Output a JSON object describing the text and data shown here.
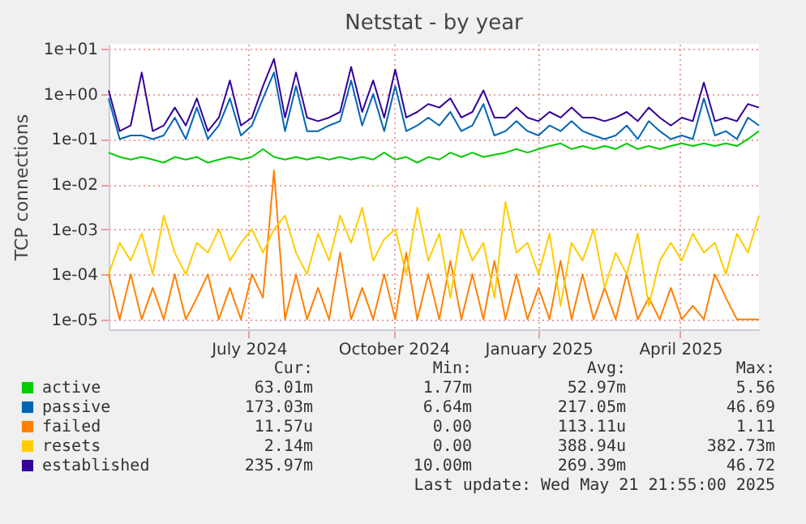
{
  "chart_data": {
    "type": "line",
    "title": "Netstat - by year",
    "ylabel": "TCP connections",
    "log": true,
    "grid": true,
    "legend": "bottom",
    "marker": "none",
    "line_style": "solid",
    "xlim": [
      "2024-04-03",
      "2025-05-21"
    ],
    "xticks": [
      {
        "value": "2024-07-01",
        "label": "July 2024"
      },
      {
        "value": "2024-10-01",
        "label": "October 2024"
      },
      {
        "value": "2025-01-01",
        "label": "January 2025"
      },
      {
        "value": "2025-04-01",
        "label": "April 2025"
      }
    ],
    "ylim": [
      6e-06,
      13
    ],
    "yticks": [
      {
        "value": 1e-05,
        "label": "1e-05"
      },
      {
        "value": 0.0001,
        "label": "1e-04"
      },
      {
        "value": 0.001,
        "label": "1e-03"
      },
      {
        "value": 0.01,
        "label": "1e-02"
      },
      {
        "value": 0.1,
        "label": "1e-01"
      },
      {
        "value": 1,
        "label": "1e+00"
      },
      {
        "value": 10,
        "label": "1e+01"
      }
    ],
    "x": [
      "2024-04-03",
      "2024-04-10",
      "2024-04-17",
      "2024-04-24",
      "2024-05-01",
      "2024-05-08",
      "2024-05-15",
      "2024-05-22",
      "2024-05-29",
      "2024-06-05",
      "2024-06-12",
      "2024-06-19",
      "2024-06-26",
      "2024-07-03",
      "2024-07-10",
      "2024-07-17",
      "2024-07-24",
      "2024-07-31",
      "2024-08-07",
      "2024-08-14",
      "2024-08-21",
      "2024-08-28",
      "2024-09-04",
      "2024-09-11",
      "2024-09-18",
      "2024-09-25",
      "2024-10-02",
      "2024-10-09",
      "2024-10-16",
      "2024-10-23",
      "2024-10-30",
      "2024-11-06",
      "2024-11-13",
      "2024-11-20",
      "2024-11-27",
      "2024-12-04",
      "2024-12-11",
      "2024-12-18",
      "2024-12-25",
      "2025-01-01",
      "2025-01-08",
      "2025-01-15",
      "2025-01-22",
      "2025-01-29",
      "2025-02-05",
      "2025-02-12",
      "2025-02-19",
      "2025-02-26",
      "2025-03-05",
      "2025-03-12",
      "2025-03-19",
      "2025-03-26",
      "2025-04-02",
      "2025-04-09",
      "2025-04-16",
      "2025-04-23",
      "2025-04-30",
      "2025-05-07",
      "2025-05-14",
      "2025-05-21"
    ],
    "series": [
      {
        "name": "active",
        "color": "#00cc00",
        "values": [
          0.05,
          0.04,
          0.035,
          0.04,
          0.035,
          0.03,
          0.04,
          0.035,
          0.04,
          0.03,
          0.035,
          0.04,
          0.035,
          0.04,
          0.06,
          0.04,
          0.035,
          0.04,
          0.035,
          0.04,
          0.035,
          0.04,
          0.035,
          0.04,
          0.035,
          0.05,
          0.035,
          0.04,
          0.03,
          0.04,
          0.035,
          0.05,
          0.04,
          0.05,
          0.04,
          0.045,
          0.05,
          0.06,
          0.05,
          0.06,
          0.07,
          0.08,
          0.06,
          0.07,
          0.06,
          0.07,
          0.06,
          0.08,
          0.06,
          0.07,
          0.06,
          0.07,
          0.08,
          0.07,
          0.08,
          0.07,
          0.08,
          0.07,
          0.1,
          0.15
        ]
      },
      {
        "name": "passive",
        "color": "#0066b3",
        "values": [
          0.8,
          0.1,
          0.12,
          0.12,
          0.1,
          0.12,
          0.3,
          0.1,
          0.5,
          0.1,
          0.2,
          0.8,
          0.12,
          0.2,
          0.8,
          3,
          0.15,
          1.5,
          0.15,
          0.15,
          0.2,
          0.25,
          2,
          0.2,
          1,
          0.15,
          1.5,
          0.15,
          0.2,
          0.3,
          0.2,
          0.4,
          0.15,
          0.2,
          0.6,
          0.12,
          0.15,
          0.25,
          0.15,
          0.12,
          0.2,
          0.15,
          0.25,
          0.15,
          0.12,
          0.1,
          0.12,
          0.2,
          0.1,
          0.25,
          0.15,
          0.1,
          0.12,
          0.1,
          0.8,
          0.12,
          0.15,
          0.1,
          0.3,
          0.2
        ]
      },
      {
        "name": "failed",
        "color": "#ff8000",
        "values": [
          0.0001,
          1e-05,
          0.0001,
          1e-05,
          5e-05,
          1e-05,
          0.0001,
          1e-05,
          3e-05,
          0.0001,
          1e-05,
          5e-05,
          1e-05,
          0.0001,
          3e-05,
          0.02,
          1e-05,
          0.0001,
          1e-05,
          5e-05,
          1e-05,
          0.0003,
          1e-05,
          5e-05,
          1e-05,
          0.0001,
          1e-05,
          0.0003,
          1e-05,
          0.0001,
          1e-05,
          0.0002,
          1e-05,
          0.0001,
          1e-05,
          0.0002,
          1e-05,
          0.0001,
          1e-05,
          5e-05,
          1e-05,
          0.0002,
          1e-05,
          0.0001,
          1e-05,
          5e-05,
          1e-05,
          0.0001,
          1e-05,
          3e-05,
          1e-05,
          5e-05,
          1e-05,
          2e-05,
          1e-05,
          0.0001,
          3e-05,
          1e-05,
          1e-05,
          1e-05
        ]
      },
      {
        "name": "resets",
        "color": "#ffcc00",
        "values": [
          0.0001,
          0.0005,
          0.0002,
          0.0008,
          0.0001,
          0.002,
          0.0003,
          0.0001,
          0.0005,
          0.0003,
          0.001,
          0.0002,
          0.0005,
          0.001,
          0.0003,
          0.001,
          0.002,
          0.0003,
          0.0001,
          0.0008,
          0.0002,
          0.002,
          0.0005,
          0.003,
          0.0002,
          0.0006,
          0.001,
          0.0001,
          0.003,
          0.0002,
          0.0008,
          3e-05,
          0.001,
          0.0002,
          0.0005,
          3e-05,
          0.004,
          0.0003,
          0.0005,
          0.0001,
          0.0008,
          2e-05,
          0.0005,
          0.0002,
          0.001,
          5e-05,
          0.0003,
          0.0001,
          0.0008,
          2e-05,
          0.0002,
          0.0005,
          0.0002,
          0.0008,
          0.0003,
          0.0005,
          0.0001,
          0.0008,
          0.0003,
          0.002
        ]
      },
      {
        "name": "established",
        "color": "#330099",
        "values": [
          1.2,
          0.15,
          0.2,
          3,
          0.15,
          0.2,
          0.5,
          0.2,
          0.8,
          0.15,
          0.3,
          2,
          0.2,
          0.3,
          1.5,
          6,
          0.3,
          3,
          0.3,
          0.25,
          0.3,
          0.4,
          4,
          0.4,
          2,
          0.3,
          3.5,
          0.3,
          0.4,
          0.6,
          0.5,
          0.8,
          0.3,
          0.4,
          1.2,
          0.3,
          0.3,
          0.5,
          0.3,
          0.25,
          0.4,
          0.3,
          0.5,
          0.3,
          0.3,
          0.25,
          0.3,
          0.4,
          0.25,
          0.5,
          0.3,
          0.2,
          0.3,
          0.25,
          1.8,
          0.25,
          0.3,
          0.25,
          0.6,
          0.5
        ]
      }
    ],
    "annotations": [
      "Cur: Min: Avg: Max:",
      "63.01m 1.77m 52.97m 5.56",
      "173.03m 6.64m 217.05m 46.69",
      "11.57u 0.00 113.11u 1.11",
      "2.14m 0.00 388.94u 382.73m",
      "235.97m 10.00m 269.39m 46.72",
      "Last update: Wed May 21 21:55:00 2025"
    ]
  }
}
